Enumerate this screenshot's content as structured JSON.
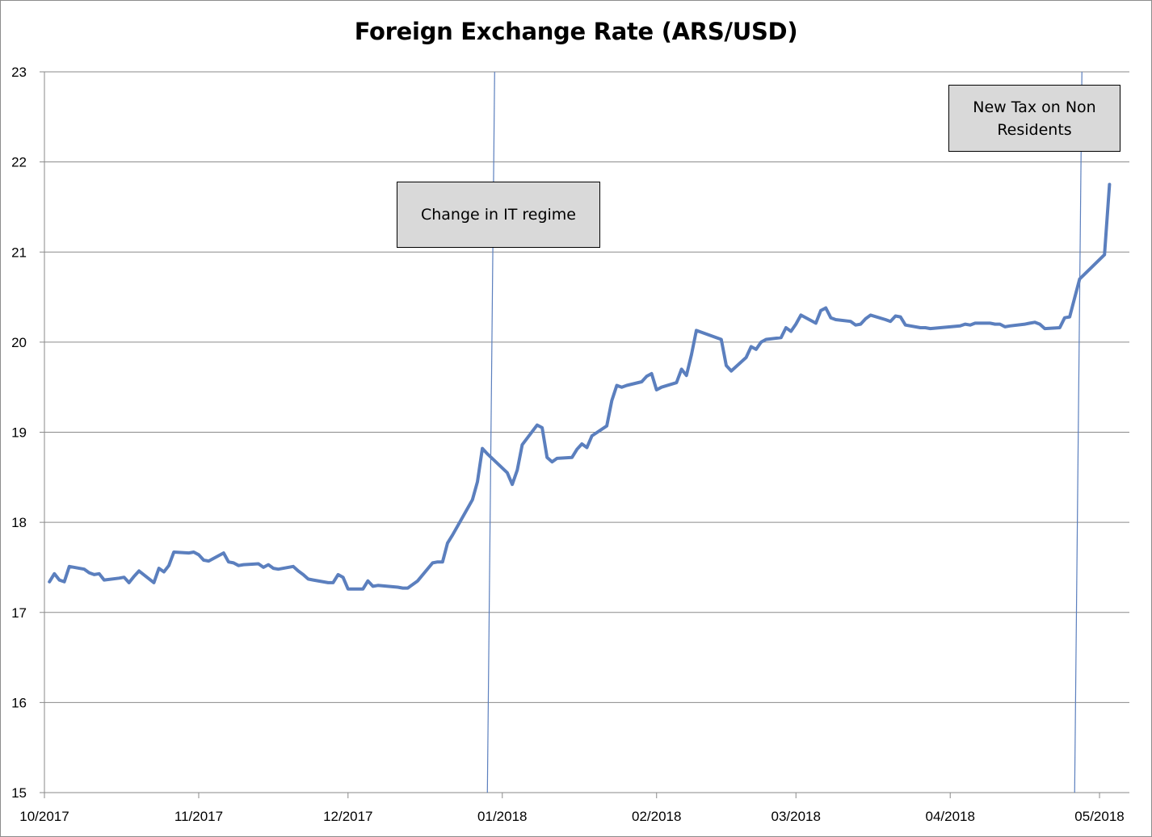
{
  "chart_data": {
    "type": "line",
    "title": "Foreign Exchange Rate (ARS/USD)",
    "xlabel": "",
    "ylabel": "",
    "ylim": [
      15,
      23
    ],
    "yticks": [
      "15",
      "16",
      "17",
      "18",
      "19",
      "20",
      "21",
      "22",
      "23"
    ],
    "xticks": [
      "10/2017",
      "11/2017",
      "12/2017",
      "01/2018",
      "02/2018",
      "03/2018",
      "04/2018",
      "05/2018"
    ],
    "grid": "horizontal",
    "line_color": "#5b7fbe",
    "series": [
      {
        "x": [
          "2017-10-02",
          "2017-10-03",
          "2017-10-04",
          "2017-10-05",
          "2017-10-06",
          "2017-10-09",
          "2017-10-10",
          "2017-10-11",
          "2017-10-12",
          "2017-10-13",
          "2017-10-16",
          "2017-10-17",
          "2017-10-18",
          "2017-10-19",
          "2017-10-20",
          "2017-10-23",
          "2017-10-24",
          "2017-10-25",
          "2017-10-26",
          "2017-10-27",
          "2017-10-30",
          "2017-10-31",
          "2017-11-01",
          "2017-11-02",
          "2017-11-03",
          "2017-11-06",
          "2017-11-07",
          "2017-11-08",
          "2017-11-09",
          "2017-11-10",
          "2017-11-13",
          "2017-11-14",
          "2017-11-15",
          "2017-11-16",
          "2017-11-17",
          "2017-11-20",
          "2017-11-21",
          "2017-11-22",
          "2017-11-23",
          "2017-11-24",
          "2017-11-27",
          "2017-11-28",
          "2017-11-29",
          "2017-11-30",
          "2017-12-01",
          "2017-12-04",
          "2017-12-05",
          "2017-12-06",
          "2017-12-07",
          "2017-12-11",
          "2017-12-12",
          "2017-12-13",
          "2017-12-14",
          "2017-12-15",
          "2017-12-18",
          "2017-12-19",
          "2017-12-20",
          "2017-12-21",
          "2017-12-22",
          "2017-12-26",
          "2017-12-27",
          "2017-12-28",
          "2017-12-29",
          "2018-01-02",
          "2018-01-03",
          "2018-01-04",
          "2018-01-05",
          "2018-01-08",
          "2018-01-09",
          "2018-01-10",
          "2018-01-11",
          "2018-01-12",
          "2018-01-15",
          "2018-01-16",
          "2018-01-17",
          "2018-01-18",
          "2018-01-19",
          "2018-01-22",
          "2018-01-23",
          "2018-01-24",
          "2018-01-25",
          "2018-01-26",
          "2018-01-29",
          "2018-01-30",
          "2018-01-31",
          "2018-02-01",
          "2018-02-02",
          "2018-02-05",
          "2018-02-06",
          "2018-02-07",
          "2018-02-08",
          "2018-02-09",
          "2018-02-14",
          "2018-02-15",
          "2018-02-16",
          "2018-02-19",
          "2018-02-20",
          "2018-02-21",
          "2018-02-22",
          "2018-02-23",
          "2018-02-26",
          "2018-02-27",
          "2018-02-28",
          "2018-03-01",
          "2018-03-02",
          "2018-03-05",
          "2018-03-06",
          "2018-03-07",
          "2018-03-08",
          "2018-03-09",
          "2018-03-12",
          "2018-03-13",
          "2018-03-14",
          "2018-03-15",
          "2018-03-16",
          "2018-03-19",
          "2018-03-20",
          "2018-03-21",
          "2018-03-22",
          "2018-03-23",
          "2018-03-26",
          "2018-03-27",
          "2018-03-28",
          "2018-04-03",
          "2018-04-04",
          "2018-04-05",
          "2018-04-06",
          "2018-04-09",
          "2018-04-10",
          "2018-04-11",
          "2018-04-12",
          "2018-04-13",
          "2018-04-16",
          "2018-04-17",
          "2018-04-18",
          "2018-04-19",
          "2018-04-20",
          "2018-04-23",
          "2018-04-24",
          "2018-04-25",
          "2018-04-26",
          "2018-04-27",
          "2018-05-02",
          "2018-05-03"
        ],
        "y": [
          17.34,
          17.43,
          17.36,
          17.34,
          17.51,
          17.48,
          17.44,
          17.42,
          17.43,
          17.36,
          17.38,
          17.39,
          17.33,
          17.4,
          17.46,
          17.33,
          17.49,
          17.45,
          17.52,
          17.67,
          17.66,
          17.67,
          17.64,
          17.58,
          17.57,
          17.66,
          17.56,
          17.55,
          17.52,
          17.53,
          17.54,
          17.5,
          17.53,
          17.49,
          17.48,
          17.51,
          17.46,
          17.42,
          17.37,
          17.36,
          17.33,
          17.33,
          17.42,
          17.39,
          17.26,
          17.26,
          17.35,
          17.29,
          17.3,
          17.28,
          17.27,
          17.27,
          17.31,
          17.35,
          17.55,
          17.56,
          17.56,
          17.77,
          17.86,
          18.25,
          18.45,
          18.82,
          18.76,
          18.55,
          18.42,
          18.58,
          18.86,
          19.08,
          19.05,
          18.72,
          18.67,
          18.71,
          18.72,
          18.81,
          18.87,
          18.83,
          18.96,
          19.07,
          19.35,
          19.52,
          19.5,
          19.52,
          19.56,
          19.62,
          19.65,
          19.47,
          19.5,
          19.55,
          19.7,
          19.63,
          19.86,
          20.13,
          20.03,
          19.74,
          19.68,
          19.83,
          19.95,
          19.92,
          20.0,
          20.03,
          20.05,
          20.16,
          20.12,
          20.2,
          20.3,
          20.21,
          20.35,
          20.38,
          20.27,
          20.25,
          20.23,
          20.19,
          20.2,
          20.26,
          20.3,
          20.25,
          20.23,
          20.29,
          20.28,
          20.19,
          20.16,
          20.16,
          20.15,
          20.18,
          20.2,
          20.19,
          20.21,
          20.21,
          20.2,
          20.2,
          20.17,
          20.18,
          20.2,
          20.21,
          20.22,
          20.2,
          20.15,
          20.16,
          20.27,
          20.28,
          20.49,
          20.7,
          20.97,
          21.75
        ]
      }
    ],
    "annotations": [
      {
        "label": "Change in IT regime",
        "date": "2017-12-29"
      },
      {
        "label": "New Tax on Non Residents",
        "date": "2018-04-26"
      }
    ]
  }
}
